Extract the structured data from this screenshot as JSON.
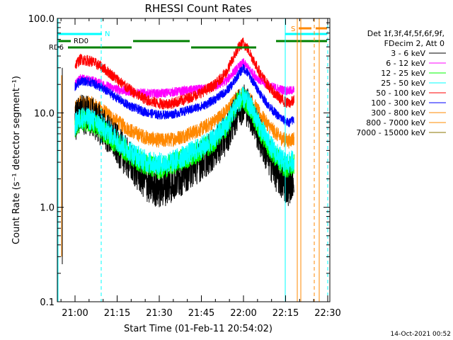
{
  "chart_data": {
    "type": "line",
    "title": "RHESSI Count Rates",
    "xlabel": "Start Time (01-Feb-11 20:54:02)",
    "ylabel": "Count Rate (s⁻¹ detector segment⁻¹)",
    "yscale": "log",
    "ylim": [
      0.1,
      100
    ],
    "xlim_minutes_from_start": [
      0,
      38
    ],
    "x_ticks": [
      {
        "label": "21:00",
        "minute": 6
      },
      {
        "label": "21:15",
        "minute": 21
      },
      {
        "label": "21:30",
        "minute": 36
      },
      {
        "label": "21:45",
        "minute": 51
      },
      {
        "label": "22:00",
        "minute": 66
      },
      {
        "label": "22:15",
        "minute": 81
      },
      {
        "label": "22:30",
        "minute": 96
      }
    ],
    "y_ticks": [
      {
        "label": "0.1",
        "value": 0.1
      },
      {
        "label": "1.0",
        "value": 1.0
      },
      {
        "label": "10.0",
        "value": 10.0
      },
      {
        "label": "100.0",
        "value": 100.0
      }
    ],
    "legend_header": [
      "Det 1f,3f,4f,5f,6f,9f,",
      "FDecim 2, Att 0"
    ],
    "series": [
      {
        "name": "3 - 6 keV",
        "color": "#000000",
        "t": [
          6,
          8,
          12,
          16,
          20,
          24,
          28,
          32,
          36,
          40,
          44,
          48,
          52,
          56,
          60,
          62,
          64,
          66,
          68,
          70,
          72,
          74,
          76,
          78,
          80,
          82,
          84
        ],
        "values": [
          8,
          10,
          9,
          7,
          5,
          3.5,
          2.5,
          1.8,
          1.6,
          1.8,
          2.2,
          2.7,
          3.3,
          4.2,
          6,
          8,
          11,
          13,
          11,
          8,
          5.5,
          4,
          3,
          2.3,
          1.9,
          1.7,
          2.2
        ]
      },
      {
        "name": "6 - 12 keV",
        "color": "#ff00ff",
        "t": [
          6,
          8,
          12,
          16,
          20,
          24,
          28,
          32,
          36,
          40,
          44,
          48,
          52,
          56,
          60,
          62,
          64,
          66,
          68,
          70,
          72,
          74,
          76,
          78,
          80,
          82,
          84
        ],
        "values": [
          20,
          23,
          22,
          20,
          18,
          17,
          16.5,
          16,
          16,
          16.5,
          17,
          17.5,
          18,
          19,
          22,
          26,
          30,
          34,
          29,
          25,
          22,
          20,
          19,
          18,
          17.5,
          17,
          17.5
        ]
      },
      {
        "name": "12 - 25 keV",
        "color": "#00ff00",
        "t": [
          6,
          8,
          12,
          16,
          20,
          24,
          28,
          32,
          36,
          40,
          44,
          48,
          52,
          56,
          60,
          62,
          64,
          66,
          68,
          70,
          72,
          74,
          76,
          78,
          80,
          82,
          84
        ],
        "values": [
          7,
          8.5,
          8,
          6.5,
          5,
          4,
          3.2,
          2.8,
          2.6,
          2.8,
          3.2,
          3.6,
          4.2,
          5.2,
          7,
          9.5,
          13,
          14,
          12,
          9,
          6.5,
          5,
          4,
          3.3,
          2.8,
          2.6,
          2.9
        ]
      },
      {
        "name": "25 - 50 keV",
        "color": "#00ffff",
        "t": [
          6,
          8,
          12,
          16,
          20,
          24,
          28,
          32,
          36,
          40,
          44,
          48,
          52,
          56,
          60,
          62,
          64,
          66,
          68,
          70,
          72,
          74,
          76,
          78,
          80,
          82,
          84
        ],
        "values": [
          7.5,
          9,
          8.5,
          7,
          5.5,
          4.3,
          3.5,
          3,
          2.9,
          3,
          3.4,
          3.9,
          4.5,
          5.6,
          7.5,
          10,
          13,
          14.5,
          12.5,
          9.5,
          7,
          5.5,
          4.3,
          3.6,
          3.1,
          2.9,
          3.2
        ]
      },
      {
        "name": "50 - 100 keV",
        "color": "#ff0000",
        "t": [
          6,
          8,
          12,
          16,
          20,
          24,
          28,
          32,
          36,
          40,
          44,
          48,
          52,
          56,
          60,
          62,
          64,
          66,
          68,
          70,
          72,
          74,
          76,
          78,
          80,
          82,
          84
        ],
        "values": [
          32,
          37,
          35,
          30,
          24,
          19,
          15.5,
          13.5,
          12.5,
          12.5,
          13.5,
          15,
          17,
          20,
          27,
          36,
          48,
          56,
          45,
          34,
          26,
          21,
          17.5,
          15,
          13.5,
          12.5,
          13.5
        ]
      },
      {
        "name": "100 - 300 keV",
        "color": "#0000ff",
        "t": [
          6,
          8,
          12,
          16,
          20,
          24,
          28,
          32,
          36,
          40,
          44,
          48,
          52,
          56,
          60,
          62,
          64,
          66,
          68,
          70,
          72,
          74,
          76,
          78,
          80,
          82,
          84
        ],
        "values": [
          19,
          22,
          21,
          18,
          15,
          12.5,
          11,
          10,
          9.5,
          9.6,
          10.2,
          11,
          12,
          14,
          17,
          20,
          25,
          30,
          25,
          20,
          16,
          13,
          11,
          9.5,
          8.5,
          7.8,
          8.5
        ]
      },
      {
        "name": "300 - 800 keV",
        "color": "#ff8800",
        "t": [
          6,
          8,
          12,
          16,
          20,
          24,
          28,
          32,
          36,
          40,
          44,
          48,
          52,
          56,
          60,
          62,
          64,
          66,
          68,
          70,
          72,
          74,
          76,
          78,
          80,
          82,
          84
        ],
        "values": [
          11,
          13,
          12.5,
          10.5,
          8.5,
          7,
          6,
          5.4,
          5.1,
          5.2,
          5.6,
          6.2,
          7,
          8.3,
          10.5,
          12.5,
          15,
          16,
          14.5,
          12,
          9.5,
          8,
          6.8,
          5.9,
          5.3,
          5,
          5.4
        ]
      },
      {
        "name": "800 - 7000 keV",
        "color": "#ff8c00",
        "values": []
      },
      {
        "name": "7000 - 15000 keV",
        "color": "#8b7500",
        "values": []
      }
    ],
    "attenuator_bars": [
      {
        "label": "RD0",
        "color": "#008000",
        "t0": 2,
        "t1": 8,
        "value": 62
      },
      {
        "label": "RD6",
        "color": "#008000",
        "t0": 0,
        "t1": 100,
        "value": 52
      },
      {
        "label": "N",
        "color": "#00ffff",
        "t0": 0,
        "t1": 10,
        "value": 68
      },
      {
        "label": "S",
        "color": "#ff8800",
        "t0": 88,
        "t1": 94,
        "value": 78
      }
    ],
    "grid": false,
    "legend_position": "right",
    "footer": "14-Oct-2021 00:52"
  }
}
